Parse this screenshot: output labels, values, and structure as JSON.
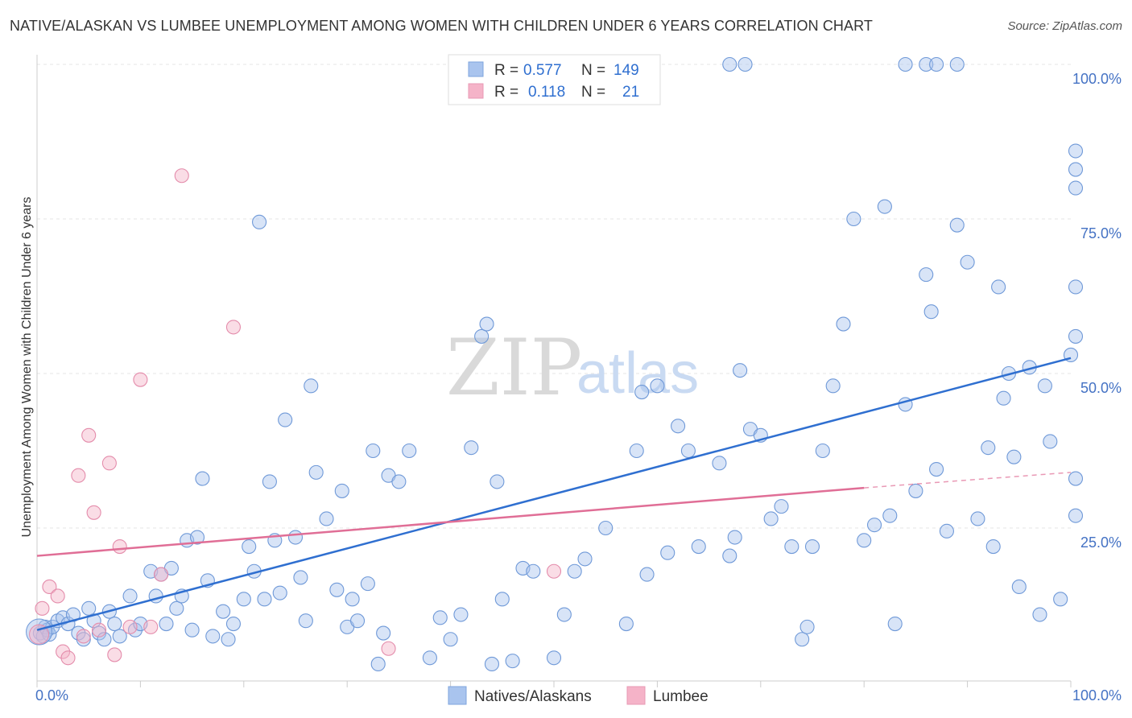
{
  "title": "NATIVE/ALASKAN VS LUMBEE UNEMPLOYMENT AMONG WOMEN WITH CHILDREN UNDER 6 YEARS CORRELATION CHART",
  "source": "Source: ZipAtlas.com",
  "watermark": {
    "part1": "ZIP",
    "part2": "atlas"
  },
  "colors": {
    "blue": "#2f6fd0",
    "blue_fill": "#a9c4ee",
    "pink": "#e06e96",
    "pink_fill": "#f5b3c8",
    "grid": "#e0e0e0",
    "tick": "#4472c4"
  },
  "legend": {
    "rows": [
      {
        "r_label": "R =",
        "r_value": "0.577",
        "n_label": "N =",
        "n_value": "149"
      },
      {
        "r_label": "R =",
        "r_value": "0.118",
        "n_label": "N =",
        "n_value": "21"
      }
    ]
  },
  "bottom_legend": [
    "Natives/Alaskans",
    "Lumbee"
  ],
  "chart_data": {
    "type": "scatter",
    "title": "NATIVE/ALASKAN VS LUMBEE UNEMPLOYMENT AMONG WOMEN WITH CHILDREN UNDER 6 YEARS CORRELATION CHART",
    "xlabel": "",
    "ylabel": "Unemployment Among Women with Children Under 6 years",
    "xlim": [
      0,
      100
    ],
    "ylim": [
      0,
      100
    ],
    "x_tick_labels": [
      "0.0%",
      "100.0%"
    ],
    "y_tick_labels": [
      "25.0%",
      "50.0%",
      "75.0%",
      "100.0%"
    ],
    "y_ticks": [
      25,
      50,
      75,
      100
    ],
    "grid": true,
    "legend_position": "top-center",
    "series": [
      {
        "name": "Natives/Alaskans",
        "color": "#2f6fd0",
        "trend": {
          "x": [
            0,
            100
          ],
          "y": [
            8.5,
            52.5
          ]
        },
        "points": [
          [
            0.3,
            8
          ],
          [
            0.6,
            7.5
          ],
          [
            0.8,
            9
          ],
          [
            1,
            8.5
          ],
          [
            1.2,
            7.8
          ],
          [
            1.5,
            9
          ],
          [
            2,
            10
          ],
          [
            2.5,
            10.5
          ],
          [
            3,
            9.5
          ],
          [
            3.5,
            11
          ],
          [
            4,
            8
          ],
          [
            4.5,
            7
          ],
          [
            5,
            12
          ],
          [
            5.5,
            10
          ],
          [
            6,
            8
          ],
          [
            6.5,
            7
          ],
          [
            7,
            11.5
          ],
          [
            7.5,
            9.5
          ],
          [
            8,
            7.5
          ],
          [
            9,
            14
          ],
          [
            9.5,
            8.5
          ],
          [
            10,
            9.5
          ],
          [
            11,
            18
          ],
          [
            11.5,
            14
          ],
          [
            12,
            17.5
          ],
          [
            12.5,
            9.5
          ],
          [
            13,
            18.5
          ],
          [
            13.5,
            12
          ],
          [
            14,
            14
          ],
          [
            14.5,
            23
          ],
          [
            15,
            8.5
          ],
          [
            15.5,
            23.5
          ],
          [
            16,
            33
          ],
          [
            16.5,
            16.5
          ],
          [
            17,
            7.5
          ],
          [
            18,
            11.5
          ],
          [
            18.5,
            7
          ],
          [
            19,
            9.5
          ],
          [
            20,
            13.5
          ],
          [
            20.5,
            22
          ],
          [
            21,
            18
          ],
          [
            21.5,
            74.5
          ],
          [
            22,
            13.5
          ],
          [
            22.5,
            32.5
          ],
          [
            23,
            23
          ],
          [
            23.5,
            14.5
          ],
          [
            24,
            42.5
          ],
          [
            25,
            23.5
          ],
          [
            25.5,
            17
          ],
          [
            26,
            10
          ],
          [
            26.5,
            48
          ],
          [
            27,
            34
          ],
          [
            28,
            26.5
          ],
          [
            29,
            15
          ],
          [
            29.5,
            31
          ],
          [
            30,
            9
          ],
          [
            30.5,
            13.5
          ],
          [
            31,
            10
          ],
          [
            32,
            16
          ],
          [
            32.5,
            37.5
          ],
          [
            33,
            3
          ],
          [
            33.5,
            8
          ],
          [
            34,
            33.5
          ],
          [
            35,
            32.5
          ],
          [
            36,
            37.5
          ],
          [
            38,
            4
          ],
          [
            39,
            10.5
          ],
          [
            40,
            7
          ],
          [
            41,
            11
          ],
          [
            42,
            38
          ],
          [
            43,
            56
          ],
          [
            43.5,
            58
          ],
          [
            44,
            3
          ],
          [
            44.5,
            32.5
          ],
          [
            45,
            13.5
          ],
          [
            46,
            3.5
          ],
          [
            47,
            18.5
          ],
          [
            48,
            18
          ],
          [
            50,
            4
          ],
          [
            51,
            11
          ],
          [
            52,
            18
          ],
          [
            53,
            20
          ],
          [
            55,
            25
          ],
          [
            57,
            9.5
          ],
          [
            58,
            37.5
          ],
          [
            58.5,
            47
          ],
          [
            59,
            17.5
          ],
          [
            60,
            48
          ],
          [
            61,
            21
          ],
          [
            62,
            41.5
          ],
          [
            63,
            37.5
          ],
          [
            64,
            22
          ],
          [
            66,
            35.5
          ],
          [
            67,
            20.5
          ],
          [
            67.5,
            23.5
          ],
          [
            68,
            50.5
          ],
          [
            69,
            41
          ],
          [
            70,
            40
          ],
          [
            71,
            26.5
          ],
          [
            72,
            28.5
          ],
          [
            73,
            22
          ],
          [
            74,
            7
          ],
          [
            74.5,
            9
          ],
          [
            75,
            22
          ],
          [
            76,
            37.5
          ],
          [
            77,
            48
          ],
          [
            78,
            58
          ],
          [
            79,
            75
          ],
          [
            80,
            23
          ],
          [
            81,
            25.5
          ],
          [
            82,
            77
          ],
          [
            82.5,
            27
          ],
          [
            83,
            9.5
          ],
          [
            84,
            45
          ],
          [
            85,
            31
          ],
          [
            86,
            66
          ],
          [
            86.5,
            60
          ],
          [
            87,
            34.5
          ],
          [
            88,
            24.5
          ],
          [
            89,
            74
          ],
          [
            90,
            68
          ],
          [
            91,
            26.5
          ],
          [
            92,
            38
          ],
          [
            92.5,
            22
          ],
          [
            93,
            64
          ],
          [
            93.5,
            46
          ],
          [
            94,
            50
          ],
          [
            94.5,
            36.5
          ],
          [
            95,
            15.5
          ],
          [
            96,
            51
          ],
          [
            97,
            11
          ],
          [
            97.5,
            48
          ],
          [
            98,
            39
          ],
          [
            99,
            13.5
          ],
          [
            100,
            53
          ],
          [
            100.5,
            27
          ],
          [
            101,
            56
          ],
          [
            102,
            64
          ],
          [
            103,
            33
          ],
          [
            103.5,
            80
          ],
          [
            104,
            86
          ],
          [
            104.5,
            83
          ],
          [
            67,
            100
          ],
          [
            68.5,
            100
          ],
          [
            84,
            100
          ],
          [
            86,
            100
          ],
          [
            87,
            100
          ],
          [
            89,
            100
          ]
        ]
      },
      {
        "name": "Lumbee",
        "color": "#e06e96",
        "trend": {
          "x": [
            0,
            80
          ],
          "y": [
            20.5,
            31.5
          ]
        },
        "trend_extension": {
          "x": [
            80,
            100
          ],
          "y": [
            31.5,
            34
          ]
        },
        "points": [
          [
            0.5,
            12
          ],
          [
            1.2,
            15.5
          ],
          [
            2,
            14
          ],
          [
            2.5,
            5
          ],
          [
            3,
            4
          ],
          [
            4,
            33.5
          ],
          [
            4.5,
            7.5
          ],
          [
            5,
            40
          ],
          [
            5.5,
            27.5
          ],
          [
            6,
            8.5
          ],
          [
            7,
            35.5
          ],
          [
            7.5,
            4.5
          ],
          [
            8,
            22
          ],
          [
            9,
            9
          ],
          [
            10,
            49
          ],
          [
            11,
            9
          ],
          [
            12,
            17.5
          ],
          [
            14,
            82
          ],
          [
            19,
            57.5
          ],
          [
            34,
            5.5
          ],
          [
            50,
            18
          ]
        ]
      }
    ]
  }
}
